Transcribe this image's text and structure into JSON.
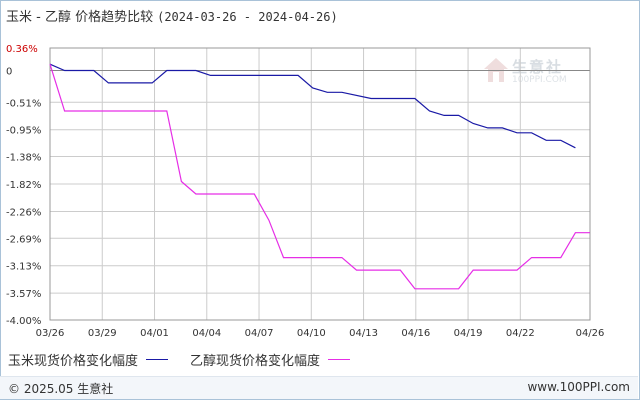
{
  "header": {
    "title": "玉米 - 乙醇 价格趋势比较",
    "date_range": "(2024-03-26 - 2024-04-26)"
  },
  "watermark": {
    "brand": "生意社",
    "url": "100PPI.COM"
  },
  "footer": {
    "copyright": "© 2025.05 生意社",
    "url": "www.100PPI.com"
  },
  "colors": {
    "series1": "#1a1aa6",
    "series2": "#e62ee6",
    "grid": "#cccccc",
    "axis": "#333333",
    "plot_border": "#999999"
  },
  "chart_data": {
    "type": "line",
    "title": "玉米 - 乙醇 价格趋势比较",
    "xlabel": "",
    "ylabel": "",
    "x_tick_labels": [
      "03/26",
      "03/29",
      "04/01",
      "04/04",
      "04/07",
      "04/10",
      "04/13",
      "04/16",
      "04/19",
      "04/22",
      "04/26"
    ],
    "x_tick_days": [
      0,
      3,
      6,
      9,
      12,
      15,
      18,
      21,
      24,
      27,
      31
    ],
    "y_tick_labels": [
      "0.36%",
      "0",
      "-0.51%",
      "-0.95%",
      "-1.38%",
      "-1.82%",
      "-2.26%",
      "-2.69%",
      "-3.13%",
      "-3.57%",
      "-4.00%"
    ],
    "y_tick_values": [
      0.36,
      0,
      -0.51,
      -0.95,
      -1.38,
      -1.82,
      -2.26,
      -2.69,
      -3.13,
      -3.57,
      -4.0
    ],
    "ylim": [
      -4.0,
      0.36
    ],
    "x_range_days": [
      0,
      31
    ],
    "grid": true,
    "legend_position": "bottom",
    "series": [
      {
        "name": "玉米现货价格变化幅度",
        "points": [
          [
            0,
            0.1
          ],
          [
            1,
            0
          ],
          [
            3,
            0
          ],
          [
            4,
            -0.2
          ],
          [
            7,
            -0.2
          ],
          [
            8,
            0
          ],
          [
            10,
            0
          ],
          [
            11,
            -0.08
          ],
          [
            17,
            -0.08
          ],
          [
            18,
            -0.28
          ],
          [
            19,
            -0.35
          ],
          [
            20,
            -0.35
          ],
          [
            22,
            -0.45
          ],
          [
            25,
            -0.45
          ],
          [
            26,
            -0.65
          ],
          [
            27,
            -0.72
          ],
          [
            28,
            -0.72
          ],
          [
            29,
            -0.85
          ],
          [
            30,
            -0.92
          ],
          [
            31,
            -0.92
          ],
          [
            32,
            -1.0
          ],
          [
            33,
            -1.0
          ],
          [
            34,
            -1.12
          ],
          [
            35,
            -1.12
          ],
          [
            36,
            -1.24
          ]
        ]
      },
      {
        "name": "乙醇现货价格变化幅度",
        "points": [
          [
            0,
            0.1
          ],
          [
            1,
            -0.65
          ],
          [
            8,
            -0.65
          ],
          [
            9,
            -1.78
          ],
          [
            10,
            -1.98
          ],
          [
            14,
            -1.98
          ],
          [
            15,
            -2.4
          ],
          [
            16,
            -3.0
          ],
          [
            20,
            -3.0
          ],
          [
            21,
            -3.2
          ],
          [
            24,
            -3.2
          ],
          [
            25,
            -3.5
          ],
          [
            28,
            -3.5
          ],
          [
            29,
            -3.2
          ],
          [
            32,
            -3.2
          ],
          [
            33,
            -3.0
          ],
          [
            35,
            -3.0
          ],
          [
            36,
            -2.6
          ],
          [
            37,
            -2.6
          ]
        ]
      }
    ],
    "x_scale_note_points_are_chart_steps": true
  }
}
